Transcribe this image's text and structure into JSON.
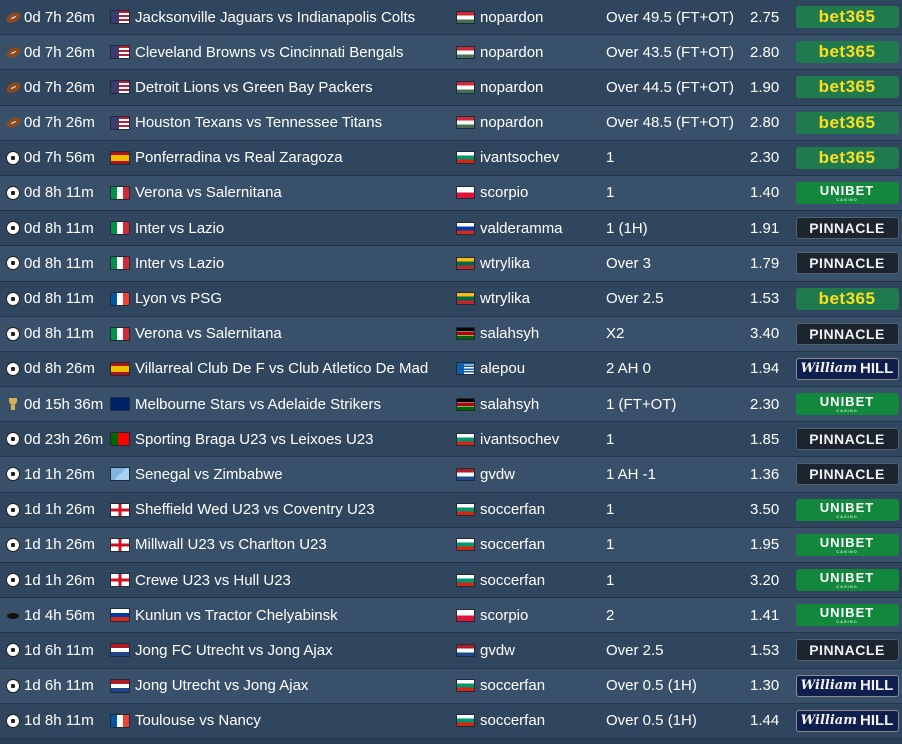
{
  "colors": {
    "row_odd": "#30465f",
    "row_even": "#385069",
    "text": "#ffffff"
  },
  "tips": [
    {
      "sport_icon": "american-football-icon",
      "countdown": "0d 7h 26m",
      "event_flag": "usa",
      "match": "Jacksonville Jaguars vs Indianapolis Colts",
      "tipster_flag": "hungary",
      "tipster": "nopardon",
      "pick": "Over 49.5 (FT+OT)",
      "odds": "2.75",
      "bookmaker": "bet365"
    },
    {
      "sport_icon": "american-football-icon",
      "countdown": "0d 7h 26m",
      "event_flag": "usa",
      "match": "Cleveland Browns vs Cincinnati Bengals",
      "tipster_flag": "hungary",
      "tipster": "nopardon",
      "pick": "Over 43.5 (FT+OT)",
      "odds": "2.80",
      "bookmaker": "bet365"
    },
    {
      "sport_icon": "american-football-icon",
      "countdown": "0d 7h 26m",
      "event_flag": "usa",
      "match": "Detroit Lions vs Green Bay Packers",
      "tipster_flag": "hungary",
      "tipster": "nopardon",
      "pick": "Over 44.5 (FT+OT)",
      "odds": "1.90",
      "bookmaker": "bet365"
    },
    {
      "sport_icon": "american-football-icon",
      "countdown": "0d 7h 26m",
      "event_flag": "usa",
      "match": "Houston Texans vs Tennessee Titans",
      "tipster_flag": "hungary",
      "tipster": "nopardon",
      "pick": "Over 48.5 (FT+OT)",
      "odds": "2.80",
      "bookmaker": "bet365"
    },
    {
      "sport_icon": "soccer-ball-icon",
      "countdown": "0d 7h 56m",
      "event_flag": "spain",
      "match": "Ponferradina vs Real Zaragoza",
      "tipster_flag": "bulgaria",
      "tipster": "ivantsochev",
      "pick": "1",
      "odds": "2.30",
      "bookmaker": "bet365"
    },
    {
      "sport_icon": "soccer-ball-icon",
      "countdown": "0d 8h 11m",
      "event_flag": "italy",
      "match": "Verona vs Salernitana",
      "tipster_flag": "poland",
      "tipster": "scorpio",
      "pick": "1",
      "odds": "1.40",
      "bookmaker": "unibet"
    },
    {
      "sport_icon": "soccer-ball-icon",
      "countdown": "0d 8h 11m",
      "event_flag": "italy",
      "match": "Inter vs Lazio",
      "tipster_flag": "russia",
      "tipster": "valderamma",
      "pick": "1 (1H)",
      "odds": "1.91",
      "bookmaker": "pinnacle"
    },
    {
      "sport_icon": "soccer-ball-icon",
      "countdown": "0d 8h 11m",
      "event_flag": "italy",
      "match": "Inter vs Lazio",
      "tipster_flag": "lithuania",
      "tipster": "wtrylika",
      "pick": "Over 3",
      "odds": "1.79",
      "bookmaker": "pinnacle"
    },
    {
      "sport_icon": "soccer-ball-icon",
      "countdown": "0d 8h 11m",
      "event_flag": "france",
      "match": "Lyon vs PSG",
      "tipster_flag": "lithuania",
      "tipster": "wtrylika",
      "pick": "Over 2.5",
      "odds": "1.53",
      "bookmaker": "bet365"
    },
    {
      "sport_icon": "soccer-ball-icon",
      "countdown": "0d 8h 11m",
      "event_flag": "italy",
      "match": "Verona vs Salernitana",
      "tipster_flag": "kenya",
      "tipster": "salahsyh",
      "pick": "X2",
      "odds": "3.40",
      "bookmaker": "pinnacle"
    },
    {
      "sport_icon": "soccer-ball-icon",
      "countdown": "0d 8h 26m",
      "event_flag": "spain",
      "match": "Villarreal Club De F vs Club Atletico De Mad",
      "tipster_flag": "greece",
      "tipster": "alepou",
      "pick": "2 AH 0",
      "odds": "1.94",
      "bookmaker": "williamhill"
    },
    {
      "sport_icon": "trophy-icon",
      "countdown": "0d 15h 36m",
      "event_flag": "australia",
      "match": "Melbourne Stars vs Adelaide Strikers",
      "tipster_flag": "kenya",
      "tipster": "salahsyh",
      "pick": "1 (FT+OT)",
      "odds": "2.30",
      "bookmaker": "unibet"
    },
    {
      "sport_icon": "soccer-ball-icon",
      "countdown": "0d 23h 26m",
      "event_flag": "portugal",
      "match": "Sporting Braga U23 vs Leixoes U23",
      "tipster_flag": "bulgaria",
      "tipster": "ivantsochev",
      "pick": "1",
      "odds": "1.85",
      "bookmaker": "pinnacle"
    },
    {
      "sport_icon": "soccer-ball-icon",
      "countdown": "1d 1h 26m",
      "event_flag": "world",
      "match": "Senegal vs Zimbabwe",
      "tipster_flag": "netherlands",
      "tipster": "gvdw",
      "pick": "1 AH -1",
      "odds": "1.36",
      "bookmaker": "pinnacle"
    },
    {
      "sport_icon": "soccer-ball-icon",
      "countdown": "1d 1h 26m",
      "event_flag": "england",
      "match": "Sheffield Wed U23 vs Coventry U23",
      "tipster_flag": "bulgaria",
      "tipster": "soccerfan",
      "pick": "1",
      "odds": "3.50",
      "bookmaker": "unibet"
    },
    {
      "sport_icon": "soccer-ball-icon",
      "countdown": "1d 1h 26m",
      "event_flag": "england",
      "match": "Millwall U23 vs Charlton U23",
      "tipster_flag": "bulgaria",
      "tipster": "soccerfan",
      "pick": "1",
      "odds": "1.95",
      "bookmaker": "unibet"
    },
    {
      "sport_icon": "soccer-ball-icon",
      "countdown": "1d 1h 26m",
      "event_flag": "england",
      "match": "Crewe U23 vs Hull U23",
      "tipster_flag": "bulgaria",
      "tipster": "soccerfan",
      "pick": "1",
      "odds": "3.20",
      "bookmaker": "unibet"
    },
    {
      "sport_icon": "hockey-puck-icon",
      "countdown": "1d 4h 56m",
      "event_flag": "russia",
      "match": "Kunlun vs Tractor Chelyabinsk",
      "tipster_flag": "poland",
      "tipster": "scorpio",
      "pick": "2",
      "odds": "1.41",
      "bookmaker": "unibet"
    },
    {
      "sport_icon": "soccer-ball-icon",
      "countdown": "1d 6h 11m",
      "event_flag": "netherlands",
      "match": "Jong FC Utrecht vs Jong Ajax",
      "tipster_flag": "netherlands",
      "tipster": "gvdw",
      "pick": "Over 2.5",
      "odds": "1.53",
      "bookmaker": "pinnacle"
    },
    {
      "sport_icon": "soccer-ball-icon",
      "countdown": "1d 6h 11m",
      "event_flag": "netherlands",
      "match": "Jong Utrecht vs Jong Ajax",
      "tipster_flag": "bulgaria",
      "tipster": "soccerfan",
      "pick": "Over 0.5 (1H)",
      "odds": "1.30",
      "bookmaker": "williamhill"
    },
    {
      "sport_icon": "soccer-ball-icon",
      "countdown": "1d 8h 11m",
      "event_flag": "france",
      "match": "Toulouse vs Nancy",
      "tipster_flag": "bulgaria",
      "tipster": "soccerfan",
      "pick": "Over 0.5 (1H)",
      "odds": "1.44",
      "bookmaker": "williamhill"
    }
  ],
  "bookmaker_labels": {
    "bet365": "bet365",
    "unibet": "UNIBET",
    "unibet_sub": "CASINO",
    "pinnacle": "PINNACLE",
    "williamhill_a": "William",
    "williamhill_b": "HILL"
  }
}
